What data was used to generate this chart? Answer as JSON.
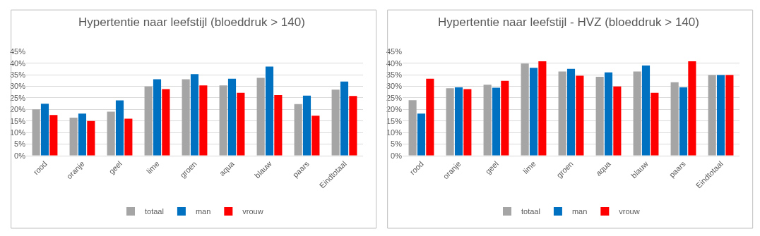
{
  "chart_data": [
    {
      "type": "bar",
      "title": "Hypertentie naar leefstijl (bloeddruk > 140)",
      "categories": [
        "rood",
        "oranje",
        "geel",
        "lime",
        "groen",
        "aqua",
        "blauw",
        "paars",
        "Eindtotaal"
      ],
      "series": [
        {
          "name": "totaal",
          "color": "#a5a5a5",
          "values": [
            20.0,
            16.4,
            19.0,
            30.0,
            33.1,
            30.4,
            33.7,
            22.3,
            28.6
          ]
        },
        {
          "name": "man",
          "color": "#0070c0",
          "values": [
            22.5,
            18.2,
            23.9,
            33.1,
            35.3,
            33.3,
            38.6,
            26.0,
            32.1
          ]
        },
        {
          "name": "vrouw",
          "color": "#ff0000",
          "values": [
            17.6,
            15.0,
            16.0,
            28.8,
            30.4,
            27.2,
            26.2,
            17.3,
            25.8
          ]
        }
      ],
      "ylim": [
        0,
        45
      ],
      "yticks": [
        {
          "value": 0,
          "label": "0%"
        },
        {
          "value": 5,
          "label": "5%"
        },
        {
          "value": 10,
          "label": "10%"
        },
        {
          "value": 15,
          "label": "15%"
        },
        {
          "value": 20,
          "label": "20%"
        },
        {
          "value": 25,
          "label": "25%"
        },
        {
          "value": 30,
          "label": "30%"
        },
        {
          "value": 35,
          "label": "35%"
        },
        {
          "value": 40,
          "label": "40%"
        },
        {
          "value": 45,
          "label": "45%"
        }
      ],
      "grid": "y",
      "legend": "bottom"
    },
    {
      "type": "bar",
      "title": "Hypertentie naar leefstijl - HVZ (bloeddruk > 140)",
      "categories": [
        "rood",
        "oranje",
        "geel",
        "lime",
        "groen",
        "aqua",
        "blauw",
        "paars",
        "Eindtotaal"
      ],
      "series": [
        {
          "name": "totaal",
          "color": "#a5a5a5",
          "values": [
            24.0,
            29.2,
            30.7,
            39.9,
            36.5,
            34.2,
            36.5,
            31.8,
            34.9
          ]
        },
        {
          "name": "man",
          "color": "#0070c0",
          "values": [
            18.2,
            29.6,
            29.4,
            38.1,
            37.6,
            36.1,
            39.1,
            29.6,
            34.9
          ]
        },
        {
          "name": "vrouw",
          "color": "#ff0000",
          "values": [
            33.3,
            28.8,
            32.4,
            40.9,
            34.6,
            30.0,
            27.2,
            40.9,
            34.9
          ]
        }
      ],
      "ylim": [
        0,
        45
      ],
      "yticks": [
        {
          "value": 0,
          "label": "0%"
        },
        {
          "value": 5,
          "label": "5%"
        },
        {
          "value": 10,
          "label": "10%"
        },
        {
          "value": 15,
          "label": "15%"
        },
        {
          "value": 20,
          "label": "20%"
        },
        {
          "value": 25,
          "label": "25%"
        },
        {
          "value": 30,
          "label": "30%"
        },
        {
          "value": 35,
          "label": "35%"
        },
        {
          "value": 40,
          "label": "40%"
        },
        {
          "value": 45,
          "label": "45%"
        }
      ],
      "grid": "y",
      "legend": "bottom"
    }
  ]
}
